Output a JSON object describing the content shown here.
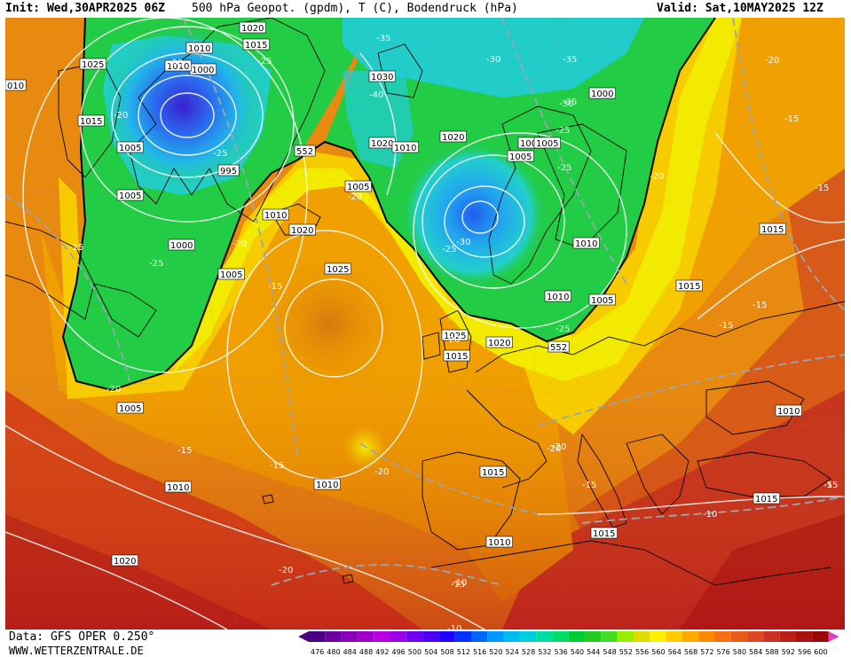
{
  "header": {
    "init": "Init: Wed,30APR2025 06Z",
    "title": "500 hPa Geopot. (gpdm), T (C), Bodendruck (hPa)",
    "valid": "Valid: Sat,10MAY2025 12Z"
  },
  "footer": {
    "source": "Data: GFS OPER 0.250°",
    "url": "WWW.WETTERZENTRALE.DE"
  },
  "colors": {
    "green": "#22cc33",
    "cyan": "#22ccdd",
    "blue": "#2266ee",
    "yellow": "#eeee00",
    "orange": "#f0a400",
    "dark_orange": "#e07a10",
    "red": "#d04020",
    "dark_red": "#b01818"
  },
  "legend": {
    "values": [
      "476",
      "480",
      "484",
      "488",
      "492",
      "496",
      "500",
      "504",
      "508",
      "512",
      "516",
      "520",
      "524",
      "528",
      "532",
      "536",
      "540",
      "544",
      "548",
      "552",
      "556",
      "560",
      "564",
      "568",
      "572",
      "576",
      "580",
      "584",
      "588",
      "592",
      "596",
      "600"
    ],
    "colors": [
      "#4b0082",
      "#6a00a0",
      "#8800b8",
      "#a000c8",
      "#b800e0",
      "#9a00e6",
      "#7000f0",
      "#4c00f8",
      "#2200ff",
      "#0033ff",
      "#0066ff",
      "#0099ff",
      "#00bbee",
      "#00d0dd",
      "#00dda0",
      "#00dd66",
      "#00cc33",
      "#22cc22",
      "#44dd22",
      "#99ee00",
      "#dddd00",
      "#ffee00",
      "#ffcc00",
      "#ffaa00",
      "#ff8800",
      "#f47010",
      "#e85a18",
      "#dc4820",
      "#cc3020",
      "#bb2018",
      "#aa1010",
      "#990808"
    ]
  },
  "pressure_labels": [
    {
      "text": "1020"
    },
    {
      "text": "1015"
    },
    {
      "text": "1010"
    },
    {
      "text": "1025"
    },
    {
      "text": "1000"
    },
    {
      "text": "1015"
    },
    {
      "text": "1005"
    },
    {
      "text": "995"
    },
    {
      "text": "1005"
    },
    {
      "text": "1000"
    },
    {
      "text": "1005"
    },
    {
      "text": "1010"
    },
    {
      "text": "1020"
    },
    {
      "text": "1025"
    },
    {
      "text": "1030"
    },
    {
      "text": "1020"
    },
    {
      "text": "1010"
    },
    {
      "text": "1020"
    },
    {
      "text": "1005"
    },
    {
      "text": "1000"
    },
    {
      "text": "1005"
    },
    {
      "text": "1010"
    },
    {
      "text": "1005"
    },
    {
      "text": "1000"
    },
    {
      "text": "1005"
    },
    {
      "text": "1010"
    },
    {
      "text": "1015"
    },
    {
      "text": "1020"
    },
    {
      "text": "1015"
    },
    {
      "text": "1010"
    },
    {
      "text": "1015"
    },
    {
      "text": "1015"
    },
    {
      "text": "1010"
    },
    {
      "text": "1010"
    },
    {
      "text": "1015"
    },
    {
      "text": "1010"
    },
    {
      "text": "1020"
    },
    {
      "text": "1025"
    },
    {
      "text": "1015"
    },
    {
      "text": "1010"
    },
    {
      "text": "1005"
    },
    {
      "text": "010"
    }
  ],
  "temp_labels": [
    {
      "text": "-35"
    },
    {
      "text": "-30"
    },
    {
      "text": "-25"
    },
    {
      "text": "-20"
    },
    {
      "text": "-25"
    },
    {
      "text": "-35"
    },
    {
      "text": "-30"
    },
    {
      "text": "-35"
    },
    {
      "text": "-40"
    },
    {
      "text": "-30"
    },
    {
      "text": "-25"
    },
    {
      "text": "-25"
    },
    {
      "text": "-20"
    },
    {
      "text": "-20"
    },
    {
      "text": "-20"
    },
    {
      "text": "-15"
    },
    {
      "text": "-25"
    },
    {
      "text": "-20"
    },
    {
      "text": "-15"
    },
    {
      "text": "-30"
    },
    {
      "text": "-25"
    },
    {
      "text": "-25"
    },
    {
      "text": "-20"
    },
    {
      "text": "-20"
    },
    {
      "text": "-20"
    },
    {
      "text": "-15"
    },
    {
      "text": "-15"
    },
    {
      "text": "-20"
    },
    {
      "text": "-15"
    },
    {
      "text": "-15"
    },
    {
      "text": "-15"
    },
    {
      "text": "-20"
    },
    {
      "text": "-15"
    },
    {
      "text": "-10"
    },
    {
      "text": "-10"
    },
    {
      "text": "-15"
    },
    {
      "text": "-10"
    },
    {
      "text": "-15"
    },
    {
      "text": "-20"
    },
    {
      "text": "-5"
    },
    {
      "text": "-15"
    }
  ],
  "contour_labels": [
    {
      "text": "552"
    },
    {
      "text": "552"
    }
  ]
}
